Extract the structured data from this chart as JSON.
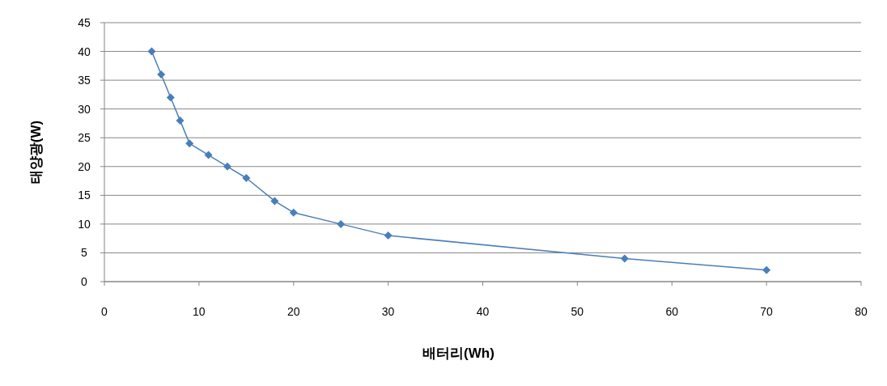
{
  "chart_data": {
    "type": "line",
    "xlabel": "배터리(Wh)",
    "ylabel": "태양광(W)",
    "x": [
      5,
      6,
      7,
      8,
      9,
      11,
      13,
      15,
      18,
      20,
      25,
      30,
      55,
      70
    ],
    "series": [
      {
        "color": "#4a7ebb",
        "values": [
          40,
          36,
          32,
          28,
          24,
          22,
          20,
          18,
          14,
          12,
          10,
          8,
          4,
          2
        ]
      }
    ],
    "xlim": [
      0,
      80
    ],
    "xticks": [
      0,
      10,
      20,
      30,
      40,
      50,
      60,
      70,
      80
    ],
    "ylim": [
      0,
      45
    ],
    "yticks": [
      0,
      5,
      10,
      15,
      20,
      25,
      30,
      35,
      40,
      45
    ],
    "grid": "y",
    "marker": "diamond",
    "line_style": "solid"
  }
}
